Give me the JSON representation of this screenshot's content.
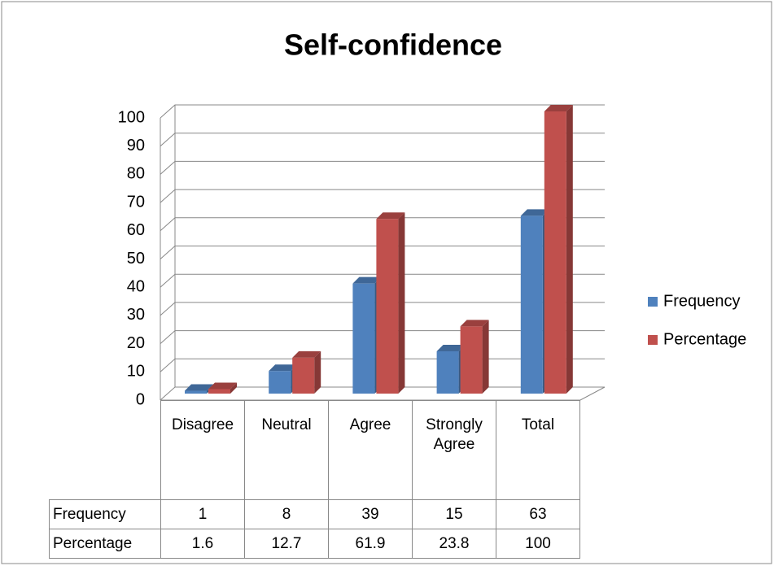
{
  "chart_data": {
    "type": "bar3d",
    "title": "Self-confidence",
    "categories": [
      "Disagree",
      "Neutral",
      "Agree",
      "Strongly Agree",
      "Total"
    ],
    "series": [
      {
        "name": "Frequency",
        "color": "#4f81bd",
        "values": [
          1,
          8,
          39,
          15,
          63
        ]
      },
      {
        "name": "Percentage",
        "color": "#c0504d",
        "values": [
          1.6,
          12.7,
          61.9,
          23.8,
          100
        ]
      }
    ],
    "ylim": [
      0,
      100
    ],
    "yticks": [
      0,
      10,
      20,
      30,
      40,
      50,
      60,
      70,
      80,
      90,
      100
    ],
    "grid": true,
    "legend": "right",
    "data_table": true
  }
}
